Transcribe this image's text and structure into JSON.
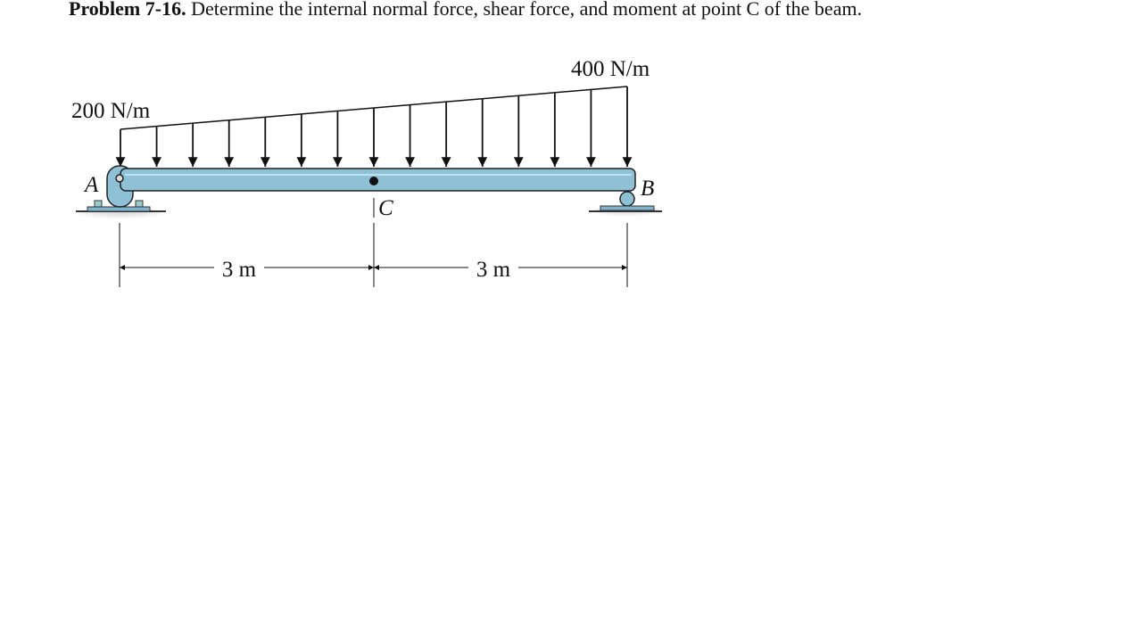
{
  "problem": {
    "label": "Problem 7-16.",
    "text": "Determine the internal normal force, shear force, and moment at point C of the beam."
  },
  "loads": {
    "left": "200 N/m",
    "right": "400 N/m"
  },
  "points": {
    "a": "A",
    "b": "B",
    "c": "C"
  },
  "dimensions": [
    "3 m",
    "3 m"
  ]
}
